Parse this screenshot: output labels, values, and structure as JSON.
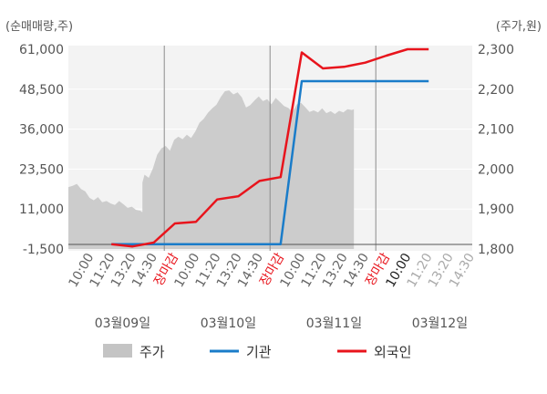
{
  "chart_data": {
    "type": "line",
    "left_axis_label": "(순매매량,주)",
    "right_axis_label": "(주가,원)",
    "left_ticks": [
      "61,000",
      "48,500",
      "36,000",
      "23,500",
      "11,000",
      "-1,500"
    ],
    "left_tick_values": [
      61000,
      48500,
      36000,
      23500,
      11000,
      -1500
    ],
    "left_ylim": [
      -1500,
      61000
    ],
    "right_ticks": [
      "2,300",
      "2,200",
      "2,100",
      "2,000",
      "1,900",
      "1,800"
    ],
    "right_tick_values": [
      2300,
      2200,
      2100,
      2000,
      1900,
      1800
    ],
    "right_ylim": [
      1800,
      2300
    ],
    "x_ticks": [
      {
        "label": "10:00",
        "style": "normal"
      },
      {
        "label": "11:20",
        "style": "normal"
      },
      {
        "label": "13:20",
        "style": "normal"
      },
      {
        "label": "14:30",
        "style": "normal"
      },
      {
        "label": "장마감",
        "style": "close"
      },
      {
        "label": "10:00",
        "style": "normal"
      },
      {
        "label": "11:20",
        "style": "normal"
      },
      {
        "label": "13:20",
        "style": "normal"
      },
      {
        "label": "14:30",
        "style": "normal"
      },
      {
        "label": "장마감",
        "style": "close"
      },
      {
        "label": "10:00",
        "style": "normal"
      },
      {
        "label": "11:20",
        "style": "normal"
      },
      {
        "label": "13:20",
        "style": "normal"
      },
      {
        "label": "14:30",
        "style": "normal"
      },
      {
        "label": "장마감",
        "style": "close"
      },
      {
        "label": "10:00",
        "style": "dark"
      },
      {
        "label": "11:20",
        "style": "faded"
      },
      {
        "label": "13:20",
        "style": "faded"
      },
      {
        "label": "14:30",
        "style": "faded"
      }
    ],
    "day_labels": [
      {
        "label": "03월09일",
        "tick_index": 2
      },
      {
        "label": "03월10일",
        "tick_index": 7
      },
      {
        "label": "03월11일",
        "tick_index": 12
      },
      {
        "label": "03월12일",
        "tick_index": 17
      }
    ],
    "day_separators": [
      3.5,
      8.5,
      13.5
    ],
    "grid": true,
    "legend_position": "bottom",
    "series": [
      {
        "name": "주가",
        "kind": "area",
        "axis": "right",
        "color": "#cccccc",
        "x": [
          0,
          0.2,
          0.4,
          0.6,
          0.8,
          1.0,
          1.2,
          1.4,
          1.6,
          1.8,
          2.0,
          2.2,
          2.4,
          2.6,
          2.8,
          3.0,
          3.2,
          3.4,
          3.499,
          3.5,
          3.6,
          3.8,
          4.0,
          4.2,
          4.4,
          4.6,
          4.8,
          5.0,
          5.2,
          5.4,
          5.6,
          5.8,
          6.0,
          6.2,
          6.4,
          6.6,
          6.8,
          7.0,
          7.2,
          7.4,
          7.6,
          7.8,
          8.0,
          8.2,
          8.4,
          8.6,
          8.8,
          9.0,
          9.2,
          9.4,
          9.6,
          9.8,
          10.0,
          10.2,
          10.4,
          10.6,
          10.8,
          11.0,
          11.2,
          11.4,
          11.6,
          11.8,
          12.0,
          12.2,
          12.4,
          12.6,
          12.8,
          13.0,
          13.2,
          13.4,
          13.5
        ],
        "values": [
          1955,
          1958,
          1963,
          1950,
          1944,
          1928,
          1922,
          1930,
          1917,
          1920,
          1914,
          1910,
          1920,
          1912,
          1903,
          1906,
          1898,
          1896,
          1892,
          1966,
          1986,
          1978,
          2002,
          2036,
          2052,
          2058,
          2046,
          2073,
          2081,
          2075,
          2086,
          2078,
          2094,
          2116,
          2126,
          2141,
          2152,
          2161,
          2180,
          2195,
          2197,
          2187,
          2192,
          2180,
          2154,
          2160,
          2172,
          2182,
          2170,
          2175,
          2162,
          2178,
          2168,
          2158,
          2153,
          2143,
          2162,
          2166,
          2155,
          2143,
          2147,
          2142,
          2152,
          2140,
          2145,
          2138,
          2146,
          2142,
          2150,
          2148,
          2150
        ]
      },
      {
        "name": "기관",
        "kind": "line",
        "axis": "left",
        "color": "#1a7cc9",
        "x": [
          1,
          9,
          10,
          16
        ],
        "values": [
          0,
          0,
          51000,
          51000
        ]
      },
      {
        "name": "외국인",
        "kind": "line",
        "axis": "left",
        "color": "#e8141c",
        "x": [
          1,
          2,
          3,
          4,
          5,
          6,
          7,
          8,
          9,
          10,
          11,
          12,
          13,
          14,
          15,
          16
        ],
        "values": [
          0,
          -700,
          500,
          6500,
          7000,
          14000,
          15000,
          19800,
          21000,
          60000,
          55000,
          55500,
          56800,
          59000,
          61000,
          61000
        ]
      }
    ]
  }
}
